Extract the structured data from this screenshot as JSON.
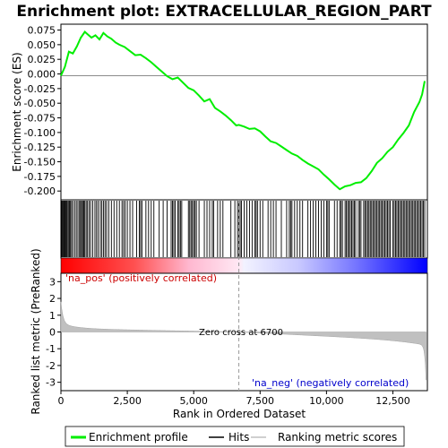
{
  "chart_data": {
    "type": "line",
    "title": "Enrichment plot: EXTRACELLULAR_REGION_PART",
    "xlabel": "Rank in Ordered Dataset",
    "ylabel_top": "Enrichment score (ES)",
    "ylabel_bottom": "Ranked list metric (PreRanked)",
    "xlim": [
      0,
      13800
    ],
    "ylim_top": [
      -0.215,
      0.085
    ],
    "ylim_bottom": [
      -3.5,
      3.5
    ],
    "x_ticks": [
      0,
      2500,
      5000,
      7500,
      10000,
      12500
    ],
    "x_tick_labels": [
      "0",
      "2,500",
      "5,000",
      "7,500",
      "10,000",
      "12,500"
    ],
    "y_ticks_top": [
      0.075,
      0.05,
      0.025,
      0.0,
      -0.025,
      -0.05,
      -0.075,
      -0.1,
      -0.125,
      -0.15,
      -0.175,
      -0.2
    ],
    "y_tick_labels_top": [
      "0.075",
      "0.050",
      "0.025",
      "0.000",
      "-0.025",
      "-0.050",
      "-0.075",
      "-0.100",
      "-0.125",
      "-0.150",
      "-0.175",
      "-0.200"
    ],
    "y_ticks_bottom": [
      3,
      2,
      1,
      0,
      -1,
      -2,
      -3
    ],
    "y_tick_labels_bottom": [
      "3",
      "2",
      "1",
      "0",
      "-1",
      "-2",
      "-3"
    ],
    "zero_cross": 6700,
    "annotations": {
      "pos": "'na_pos' (positively correlated)",
      "neg": "'na_neg' (negatively correlated)",
      "zero": "Zero cross at 6700"
    },
    "legend": [
      "Enrichment profile",
      "Hits",
      "Ranking metric scores"
    ],
    "colors": {
      "profile": "#00ee00",
      "hits": "#000000",
      "metric_fill": "#c0c0c0",
      "pos": "#ff0000",
      "neg": "#0000ff",
      "zero_line": "#999999"
    },
    "es_profile": {
      "x": [
        0,
        150,
        300,
        450,
        600,
        750,
        900,
        1000,
        1150,
        1300,
        1450,
        1600,
        1750,
        1900,
        2050,
        2200,
        2400,
        2600,
        2800,
        3000,
        3200,
        3400,
        3600,
        3800,
        4000,
        4200,
        4400,
        4600,
        4800,
        5000,
        5200,
        5400,
        5600,
        5800,
        6000,
        6200,
        6400,
        6600,
        6700,
        6900,
        7100,
        7300,
        7500,
        7700,
        7900,
        8100,
        8300,
        8500,
        8700,
        8900,
        9100,
        9300,
        9500,
        9700,
        9900,
        10100,
        10300,
        10500,
        10700,
        10900,
        11100,
        11300,
        11500,
        11700,
        11900,
        12100,
        12300,
        12500,
        12700,
        12900,
        13100,
        13300,
        13500,
        13600,
        13700
      ],
      "y": [
        -0.003,
        0.012,
        0.038,
        0.035,
        0.047,
        0.062,
        0.072,
        0.068,
        0.062,
        0.066,
        0.059,
        0.07,
        0.064,
        0.06,
        0.054,
        0.05,
        0.046,
        0.039,
        0.032,
        0.033,
        0.027,
        0.02,
        0.012,
        0.004,
        -0.004,
        -0.009,
        -0.006,
        -0.015,
        -0.024,
        -0.028,
        -0.037,
        -0.047,
        -0.043,
        -0.058,
        -0.064,
        -0.071,
        -0.079,
        -0.088,
        -0.087,
        -0.09,
        -0.094,
        -0.093,
        -0.098,
        -0.107,
        -0.115,
        -0.118,
        -0.124,
        -0.13,
        -0.136,
        -0.14,
        -0.147,
        -0.153,
        -0.158,
        -0.163,
        -0.172,
        -0.18,
        -0.189,
        -0.197,
        -0.192,
        -0.19,
        -0.186,
        -0.185,
        -0.178,
        -0.166,
        -0.152,
        -0.144,
        -0.133,
        -0.125,
        -0.112,
        -0.101,
        -0.088,
        -0.065,
        -0.048,
        -0.035,
        -0.012
      ]
    },
    "hits": [
      30,
      60,
      90,
      120,
      150,
      180,
      210,
      240,
      280,
      320,
      360,
      400,
      450,
      520,
      580,
      640,
      700,
      740,
      780,
      820,
      860,
      900,
      950,
      1000,
      1060,
      1120,
      1200,
      1280,
      1340,
      1400,
      1480,
      1540,
      1600,
      1660,
      1720,
      1800,
      1900,
      2000,
      2100,
      2200,
      2300,
      2360,
      2420,
      2500,
      2600,
      2700,
      2850,
      2950,
      3000,
      3050,
      3200,
      3300,
      3400,
      3500,
      3700,
      3850,
      4000,
      4150,
      4200,
      4250,
      4300,
      4400,
      4450,
      4500,
      4550,
      4800,
      4850,
      4900,
      4950,
      5000,
      5050,
      5100,
      5200,
      5400,
      5500,
      5600,
      5700,
      5750,
      5900,
      6000,
      6100,
      6400,
      6550,
      6650,
      6700,
      6750,
      6800,
      6900,
      7000,
      7100,
      7200,
      7300,
      7350,
      7400,
      7500,
      7600,
      7800,
      7900,
      8000,
      8100,
      8300,
      8500,
      8600,
      8650,
      8700,
      8800,
      8900,
      9000,
      9100,
      9300,
      9400,
      9500,
      9600,
      9700,
      9800,
      9900,
      10000,
      10050,
      10100,
      10300,
      10400,
      10500,
      10550,
      10600,
      10700,
      10750,
      10800,
      10850,
      10900,
      10950,
      11000,
      11050,
      11100,
      11200,
      11250,
      11300,
      11400,
      11450,
      11500,
      11550,
      11600,
      11650,
      11700,
      11750,
      11800,
      11850,
      11900,
      11950,
      12000,
      12050,
      12100,
      12150,
      12200,
      12250,
      12300,
      12350,
      12400,
      12500,
      12550,
      12600,
      12650,
      12700,
      12750,
      12800,
      12850,
      12900,
      12950,
      13000,
      13050,
      13100,
      13150,
      13200,
      13250,
      13300,
      13350,
      13400,
      13450,
      13500,
      13550,
      13600,
      13650,
      13700
    ]
  }
}
